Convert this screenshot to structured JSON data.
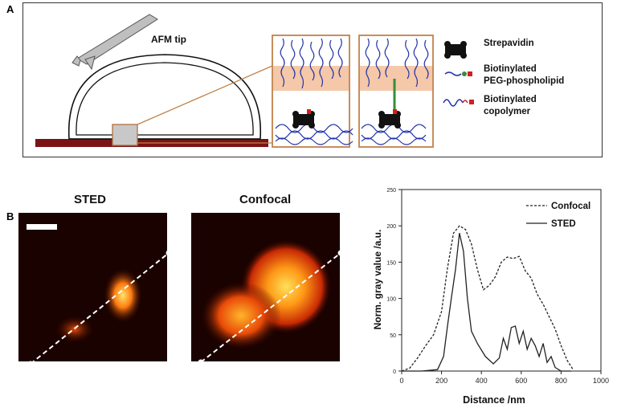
{
  "panel_a": {
    "letter": "A",
    "afm_label": "AFM tip",
    "legend": [
      {
        "label": "Strepavidin"
      },
      {
        "label": "Biotinylated\nPEG-phospholipid"
      },
      {
        "label": "Biotinylated\ncopolymer"
      }
    ],
    "colors": {
      "substrate": "#7a1414",
      "membrane_band": "#f4c8a8",
      "polymer": "#2233aa",
      "inset_border": "#c0824a"
    }
  },
  "panel_b": {
    "letter": "B",
    "sted_title": "STED",
    "confocal_title": "Confocal"
  },
  "chart_data": {
    "type": "line",
    "title": "",
    "xlabel": "Distance /nm",
    "ylabel": "Norm. gray value /a.u.",
    "xlim": [
      0,
      1000
    ],
    "ylim": [
      0,
      250
    ],
    "xticks": [
      0,
      200,
      400,
      600,
      800,
      1000
    ],
    "yticks": [
      0,
      50,
      100,
      150,
      200,
      250
    ],
    "legend_position": "top-right",
    "series": [
      {
        "name": "Confocal",
        "style": "dashed",
        "x": [
          0,
          40,
          80,
          120,
          160,
          200,
          230,
          260,
          290,
          320,
          350,
          380,
          410,
          440,
          470,
          500,
          530,
          560,
          590,
          620,
          650,
          680,
          710,
          740,
          770,
          800,
          830,
          860
        ],
        "y": [
          0,
          4,
          18,
          35,
          50,
          82,
          142,
          190,
          200,
          195,
          175,
          140,
          112,
          118,
          130,
          150,
          157,
          155,
          158,
          138,
          128,
          106,
          92,
          75,
          58,
          35,
          15,
          2
        ]
      },
      {
        "name": "STED",
        "style": "solid",
        "x": [
          0,
          100,
          180,
          210,
          230,
          250,
          270,
          290,
          310,
          330,
          350,
          380,
          420,
          460,
          490,
          510,
          530,
          550,
          570,
          590,
          610,
          630,
          650,
          670,
          690,
          710,
          730,
          750,
          770,
          800,
          850
        ],
        "y": [
          0,
          0,
          2,
          20,
          62,
          102,
          140,
          190,
          165,
          100,
          55,
          38,
          20,
          10,
          18,
          45,
          30,
          60,
          62,
          38,
          55,
          30,
          45,
          35,
          20,
          38,
          12,
          20,
          5,
          0,
          0
        ]
      }
    ]
  }
}
